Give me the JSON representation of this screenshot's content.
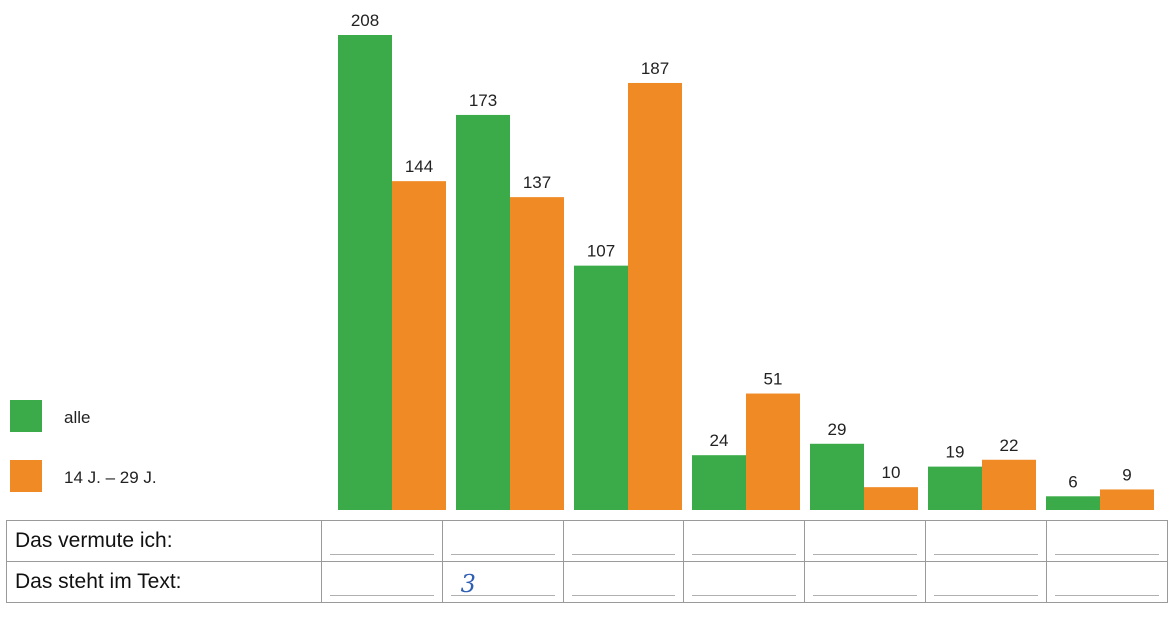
{
  "chart_data": {
    "type": "bar",
    "categories": [
      "",
      "",
      "",
      "",
      "",
      "",
      ""
    ],
    "series": [
      {
        "name": "alle",
        "color": "#3aab48",
        "values": [
          208,
          173,
          107,
          24,
          29,
          19,
          6
        ]
      },
      {
        "name": "14 J. – 29 J.",
        "color": "#f08a24",
        "values": [
          144,
          137,
          187,
          51,
          10,
          22,
          9
        ]
      }
    ],
    "title": "",
    "xlabel": "",
    "ylabel": "",
    "ylim": [
      0,
      208
    ],
    "grid": false,
    "legend_placement": "left"
  },
  "legend": {
    "items": [
      {
        "label": "alle",
        "color": "#3aab48"
      },
      {
        "label": "14 J. – 29 J.",
        "color": "#f08a24"
      }
    ]
  },
  "table": {
    "rows": [
      {
        "label": "Das vermute ich:",
        "cells": [
          "",
          "",
          "",
          "",
          "",
          "",
          ""
        ]
      },
      {
        "label": "Das steht im Text:",
        "cells": [
          "",
          "3",
          "",
          "",
          "",
          "",
          ""
        ]
      }
    ]
  }
}
